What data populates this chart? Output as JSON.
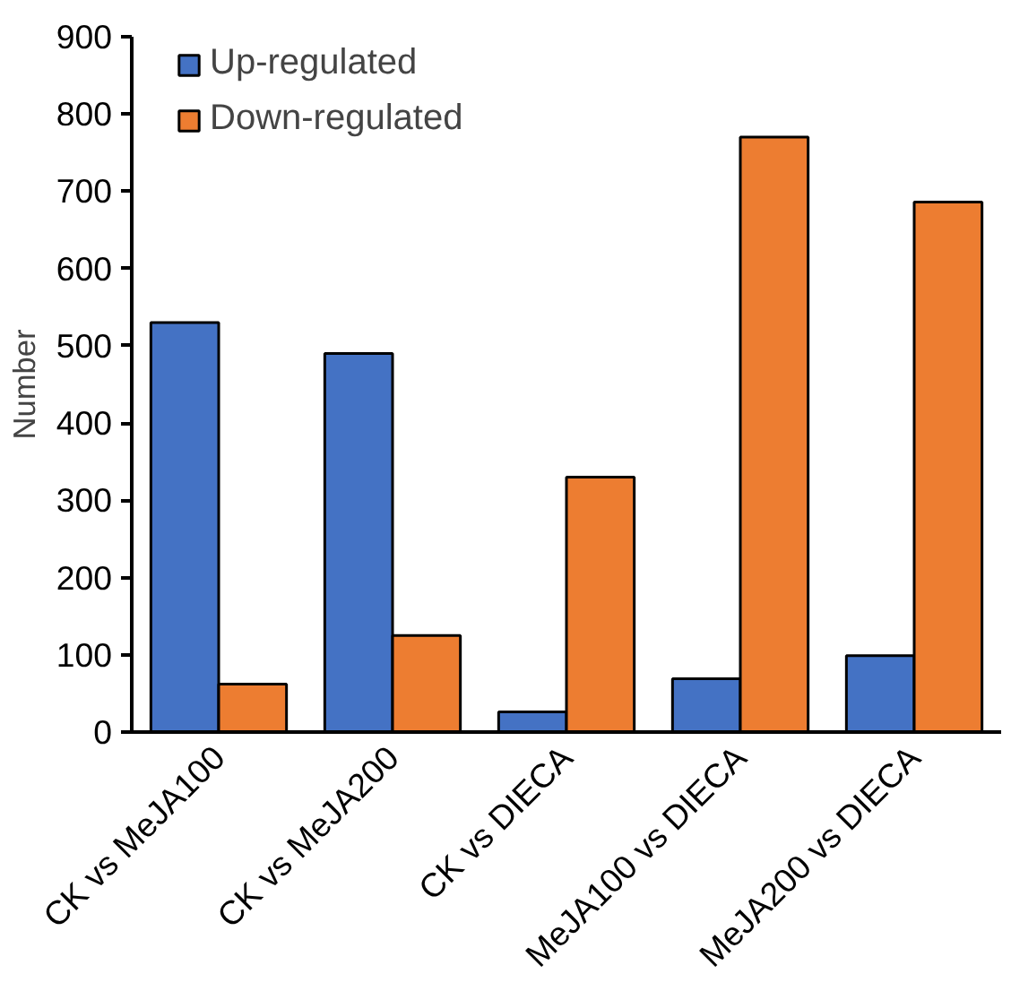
{
  "chart_data": {
    "type": "bar",
    "ylabel": "Number",
    "categories": [
      "CK vs MeJA100",
      "CK vs MeJA200",
      "CK vs DIECA",
      "MeJA100 vs DIECA",
      "MeJA200 vs DIECA"
    ],
    "series": [
      {
        "name": "Up-regulated",
        "color": "#4472c4",
        "values": [
          530,
          490,
          26,
          69,
          99
        ]
      },
      {
        "name": "Down-regulated",
        "color": "#ed7d31",
        "values": [
          62,
          125,
          330,
          770,
          686
        ]
      }
    ],
    "ylim": [
      0,
      900
    ],
    "yticks": [
      0,
      100,
      200,
      300,
      400,
      500,
      600,
      700,
      800,
      900
    ],
    "grid": false,
    "legend": "top left"
  }
}
